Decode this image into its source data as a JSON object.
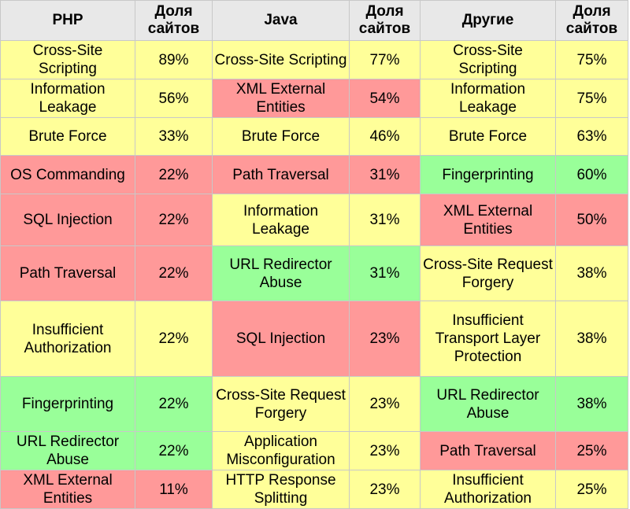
{
  "colors": {
    "yellow": "#ffff99",
    "red": "#ff9999",
    "green": "#99ff99",
    "header": "#e8e8e8"
  },
  "headers": [
    "PHP",
    "Доля сайтов",
    "Java",
    "Доля сайтов",
    "Другие",
    "Доля сайтов"
  ],
  "rows": [
    {
      "h": 49,
      "cells": [
        [
          "Cross-Site Scripting",
          "y"
        ],
        [
          "89%",
          "y"
        ],
        [
          "Cross-Site Scripting",
          "y"
        ],
        [
          "77%",
          "y"
        ],
        [
          "Cross-Site Scripting",
          "y"
        ],
        [
          "75%",
          "y"
        ]
      ]
    },
    {
      "h": 49,
      "cells": [
        [
          "Information Leakage",
          "y"
        ],
        [
          "56%",
          "y"
        ],
        [
          "XML External Entities",
          "r"
        ],
        [
          "54%",
          "r"
        ],
        [
          "Information Leakage",
          "y"
        ],
        [
          "75%",
          "y"
        ]
      ]
    },
    {
      "h": 48,
      "cells": [
        [
          "Brute Force",
          "y"
        ],
        [
          "33%",
          "y"
        ],
        [
          "Brute Force",
          "y"
        ],
        [
          "46%",
          "y"
        ],
        [
          "Brute Force",
          "y"
        ],
        [
          "63%",
          "y"
        ]
      ]
    },
    {
      "h": 49,
      "cells": [
        [
          "OS Commanding",
          "r"
        ],
        [
          "22%",
          "r"
        ],
        [
          "Path Traversal",
          "r"
        ],
        [
          "31%",
          "r"
        ],
        [
          "Fingerprinting",
          "g"
        ],
        [
          "60%",
          "g"
        ]
      ]
    },
    {
      "h": 66,
      "cells": [
        [
          "SQL Injection",
          "r"
        ],
        [
          "22%",
          "r"
        ],
        [
          "Information Leakage",
          "y"
        ],
        [
          "31%",
          "y"
        ],
        [
          "XML External Entities",
          "r"
        ],
        [
          "50%",
          "r"
        ]
      ]
    },
    {
      "h": 70,
      "cells": [
        [
          "Path Traversal",
          "r"
        ],
        [
          "22%",
          "r"
        ],
        [
          "URL Redirector Abuse",
          "g"
        ],
        [
          "31%",
          "g"
        ],
        [
          "Cross-Site Request Forgery",
          "y"
        ],
        [
          "38%",
          "y"
        ]
      ]
    },
    {
      "h": 96,
      "cells": [
        [
          "Insufficient Authorization",
          "y"
        ],
        [
          "22%",
          "y"
        ],
        [
          "SQL Injection",
          "r"
        ],
        [
          "23%",
          "r"
        ],
        [
          "Insufficient Transport Layer Protection",
          "y"
        ],
        [
          "38%",
          "y"
        ]
      ]
    },
    {
      "h": 70,
      "cells": [
        [
          "Fingerprinting",
          "g"
        ],
        [
          "22%",
          "g"
        ],
        [
          "Cross-Site Request Forgery",
          "y"
        ],
        [
          "23%",
          "y"
        ],
        [
          "URL Redirector Abuse",
          "g"
        ],
        [
          "38%",
          "g"
        ]
      ]
    },
    {
      "h": 49,
      "cells": [
        [
          "URL Redirector Abuse",
          "g"
        ],
        [
          "22%",
          "g"
        ],
        [
          "Application Misconfiguration",
          "y"
        ],
        [
          "23%",
          "y"
        ],
        [
          "Path Traversal",
          "r"
        ],
        [
          "25%",
          "r"
        ]
      ]
    },
    {
      "h": 49,
      "cells": [
        [
          "XML External Entities",
          "r"
        ],
        [
          "11%",
          "r"
        ],
        [
          "HTTP Response Splitting",
          "y"
        ],
        [
          "23%",
          "y"
        ],
        [
          "Insufficient Authorization",
          "y"
        ],
        [
          "25%",
          "y"
        ]
      ]
    }
  ]
}
